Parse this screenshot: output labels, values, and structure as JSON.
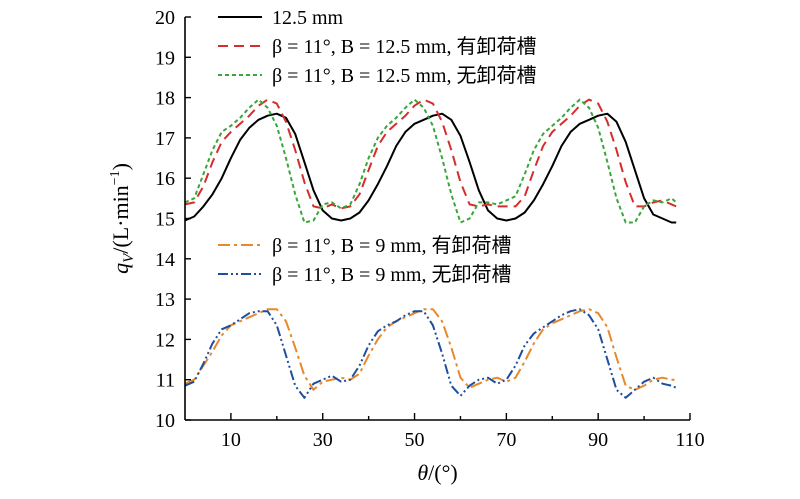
{
  "chart_data": {
    "type": "line",
    "xlabel": "θ/(°)",
    "ylabel": "qV/(L·min−1)",
    "ylabel_parts": {
      "symbol": "q",
      "subscript": "V",
      "unit": "/(L·min",
      "exponent": "−1",
      "close": ")"
    },
    "xlabel_parts": {
      "symbol": "θ",
      "unit": "/(°)"
    },
    "xlim": [
      0,
      110
    ],
    "ylim": [
      10,
      20
    ],
    "xticks": [
      10,
      30,
      50,
      70,
      90,
      110
    ],
    "yticks": [
      10,
      11,
      12,
      13,
      14,
      15,
      16,
      17,
      18,
      19,
      20
    ],
    "grid": false,
    "legend_groups": [
      {
        "placement": "top-left",
        "series_indices": [
          0,
          1,
          2
        ]
      },
      {
        "placement": "middle-left",
        "series_indices": [
          3,
          4
        ]
      }
    ],
    "series": [
      {
        "name": "12.5 mm",
        "color": "#000000",
        "dash": "solid",
        "x": [
          0,
          2,
          4,
          6,
          8,
          10,
          12,
          14,
          16,
          18,
          20,
          22,
          24,
          26,
          28,
          30,
          32,
          34,
          36,
          38,
          40,
          42,
          44,
          46,
          48,
          50,
          52,
          54,
          56,
          58,
          60,
          62,
          64,
          66,
          68,
          70,
          72,
          74,
          76,
          78,
          80,
          82,
          84,
          86,
          88,
          90,
          92,
          94,
          96,
          98,
          100,
          102,
          104,
          106,
          107
        ],
        "y": [
          14.95,
          15.05,
          15.3,
          15.6,
          16.0,
          16.5,
          16.95,
          17.25,
          17.45,
          17.55,
          17.6,
          17.5,
          17.1,
          16.4,
          15.7,
          15.2,
          15.0,
          14.95,
          15.0,
          15.15,
          15.45,
          15.85,
          16.3,
          16.8,
          17.15,
          17.35,
          17.45,
          17.55,
          17.6,
          17.45,
          17.05,
          16.4,
          15.7,
          15.2,
          15.0,
          14.95,
          15.0,
          15.15,
          15.45,
          15.85,
          16.3,
          16.8,
          17.15,
          17.35,
          17.45,
          17.55,
          17.6,
          17.4,
          16.9,
          16.2,
          15.5,
          15.1,
          15.0,
          14.9,
          14.9
        ]
      },
      {
        "name": "β = 11°, B = 12.5 mm, 有卸荷槽",
        "color": "#d62c2c",
        "dash": "10,6",
        "x": [
          0,
          2,
          4,
          6,
          8,
          10,
          12,
          14,
          16,
          18,
          20,
          22,
          24,
          26,
          28,
          30,
          32,
          34,
          36,
          38,
          40,
          42,
          44,
          46,
          48,
          50,
          52,
          54,
          56,
          58,
          60,
          62,
          64,
          66,
          68,
          70,
          72,
          74,
          76,
          78,
          80,
          82,
          84,
          86,
          88,
          90,
          92,
          94,
          96,
          98,
          100,
          102,
          104,
          106,
          107
        ],
        "y": [
          15.35,
          15.4,
          15.8,
          16.4,
          16.9,
          17.15,
          17.35,
          17.55,
          17.8,
          17.95,
          17.85,
          17.4,
          16.7,
          15.9,
          15.3,
          15.25,
          15.35,
          15.25,
          15.3,
          15.6,
          16.2,
          16.8,
          17.15,
          17.35,
          17.55,
          17.8,
          17.95,
          17.85,
          17.4,
          16.7,
          15.9,
          15.35,
          15.3,
          15.35,
          15.3,
          15.3,
          15.3,
          15.55,
          16.2,
          16.8,
          17.15,
          17.35,
          17.55,
          17.8,
          17.95,
          17.85,
          17.4,
          16.7,
          15.9,
          15.3,
          15.3,
          15.4,
          15.45,
          15.35,
          15.3
        ]
      },
      {
        "name": "β = 11°, B = 12.5 mm, 无卸荷槽",
        "color": "#3aa63a",
        "dash": "4,3",
        "x": [
          0,
          2,
          4,
          6,
          8,
          10,
          12,
          14,
          16,
          18,
          20,
          22,
          24,
          26,
          28,
          30,
          32,
          34,
          36,
          38,
          40,
          42,
          44,
          46,
          48,
          50,
          52,
          54,
          56,
          58,
          60,
          62,
          64,
          66,
          68,
          70,
          72,
          74,
          76,
          78,
          80,
          82,
          84,
          86,
          88,
          90,
          92,
          94,
          96,
          98,
          100,
          102,
          104,
          106,
          107
        ],
        "y": [
          15.4,
          15.5,
          16.1,
          16.7,
          17.15,
          17.3,
          17.5,
          17.75,
          17.95,
          17.75,
          17.3,
          16.5,
          15.6,
          14.9,
          14.95,
          15.35,
          15.4,
          15.25,
          15.35,
          15.85,
          16.5,
          17.0,
          17.3,
          17.5,
          17.75,
          17.95,
          17.75,
          17.3,
          16.5,
          15.6,
          14.9,
          15.0,
          15.4,
          15.4,
          15.35,
          15.45,
          15.55,
          16.1,
          16.7,
          17.1,
          17.3,
          17.5,
          17.75,
          17.95,
          17.75,
          17.25,
          16.4,
          15.5,
          14.9,
          14.9,
          15.3,
          15.45,
          15.4,
          15.5,
          15.4
        ]
      },
      {
        "name": "β = 11°, B = 9 mm, 有卸荷槽",
        "color": "#e8882a",
        "dash": "12,4,3,4",
        "x": [
          0,
          2,
          4,
          6,
          8,
          10,
          12,
          14,
          16,
          18,
          20,
          22,
          24,
          26,
          28,
          30,
          32,
          34,
          36,
          38,
          40,
          42,
          44,
          46,
          48,
          50,
          52,
          54,
          56,
          58,
          60,
          62,
          64,
          66,
          68,
          70,
          72,
          74,
          76,
          78,
          80,
          82,
          84,
          86,
          88,
          90,
          92,
          94,
          96,
          98,
          100,
          102,
          104,
          106,
          107
        ],
        "y": [
          10.9,
          11.0,
          11.35,
          11.7,
          12.1,
          12.35,
          12.45,
          12.55,
          12.65,
          12.75,
          12.75,
          12.45,
          11.8,
          11.1,
          10.75,
          10.95,
          11.0,
          11.05,
          11.0,
          11.15,
          11.6,
          12.0,
          12.3,
          12.45,
          12.55,
          12.65,
          12.75,
          12.75,
          12.45,
          11.8,
          11.05,
          10.8,
          10.9,
          11.0,
          11.05,
          10.95,
          11.05,
          11.45,
          11.9,
          12.25,
          12.4,
          12.5,
          12.6,
          12.7,
          12.75,
          12.65,
          12.3,
          11.55,
          10.85,
          10.75,
          10.85,
          11.0,
          11.05,
          11.0,
          11.0
        ]
      },
      {
        "name": "β = 11°, B = 9 mm, 无卸荷槽",
        "color": "#1f4e9c",
        "dash": "10,3,2,3,2,3",
        "x": [
          0,
          2,
          4,
          6,
          8,
          10,
          12,
          14,
          16,
          18,
          20,
          22,
          24,
          26,
          28,
          30,
          32,
          34,
          36,
          38,
          40,
          42,
          44,
          46,
          48,
          50,
          52,
          54,
          56,
          58,
          60,
          62,
          64,
          66,
          68,
          70,
          72,
          74,
          76,
          78,
          80,
          82,
          84,
          86,
          88,
          90,
          92,
          94,
          96,
          98,
          100,
          102,
          104,
          106,
          107
        ],
        "y": [
          10.85,
          10.95,
          11.4,
          11.9,
          12.25,
          12.35,
          12.5,
          12.65,
          12.7,
          12.7,
          12.35,
          11.6,
          10.85,
          10.55,
          10.9,
          11.0,
          11.1,
          10.95,
          11.0,
          11.35,
          11.85,
          12.2,
          12.35,
          12.45,
          12.6,
          12.7,
          12.7,
          12.35,
          11.65,
          10.85,
          10.6,
          10.85,
          11.0,
          11.05,
          10.9,
          11.0,
          11.35,
          11.85,
          12.15,
          12.3,
          12.45,
          12.6,
          12.7,
          12.75,
          12.6,
          12.25,
          11.5,
          10.75,
          10.55,
          10.75,
          10.95,
          11.05,
          10.9,
          10.85,
          10.8
        ]
      }
    ]
  }
}
